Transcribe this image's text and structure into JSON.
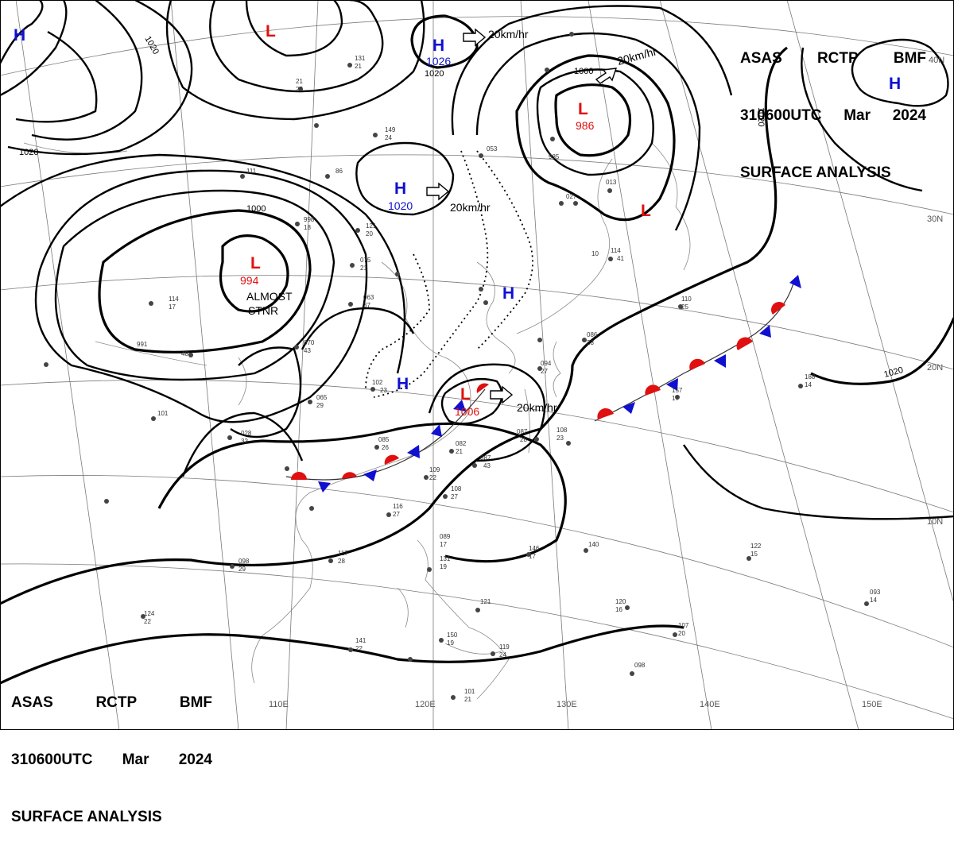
{
  "header_top": {
    "line1": [
      "ASAS",
      "RCTP",
      "BMF"
    ],
    "line2": [
      "310600UTC",
      "Mar",
      "2024"
    ],
    "line3": "SURFACE ANALYSIS"
  },
  "header_bottom": {
    "line1": [
      "ASAS",
      "RCTP",
      "BMF"
    ],
    "line2": [
      "310600UTC",
      "Mar",
      "2024"
    ],
    "line3": "SURFACE ANALYSIS"
  },
  "colors": {
    "high": "#1010d0",
    "low": "#e01010",
    "isobar": "#000000",
    "grid": "#7a7a7a"
  },
  "pressure_systems": [
    {
      "type": "H",
      "value": ""
    },
    {
      "type": "L",
      "value": ""
    },
    {
      "type": "H",
      "value": "1026"
    },
    {
      "type": "L",
      "value": "986"
    },
    {
      "type": "H",
      "value": "1020"
    },
    {
      "type": "L",
      "value": "994"
    },
    {
      "type": "L",
      "value": ""
    },
    {
      "type": "H",
      "value": ""
    },
    {
      "type": "H",
      "value": ""
    },
    {
      "type": "L",
      "value": "1006"
    },
    {
      "type": "H",
      "value": ""
    }
  ],
  "motion_labels": [
    "20km/hr",
    "20km/hr",
    "20km/hr",
    "20km/hr"
  ],
  "annotations": [
    "ALMOST",
    "STNR"
  ],
  "isobar_labels": [
    "1020",
    "1020",
    "1000",
    "1000",
    "1020",
    "1020",
    "1020",
    "1026"
  ],
  "longitude_labels": [
    "110E",
    "120E",
    "130E",
    "140E",
    "150E"
  ],
  "latitude_labels": [
    "40N",
    "30N",
    "20N",
    "10N"
  ],
  "station_values": [
    "131",
    "21",
    "25",
    "149",
    "24",
    "86",
    "111",
    "998",
    "18",
    "121",
    "20",
    "075",
    "21",
    "063",
    "37",
    "114",
    "17",
    "991",
    "48",
    "070",
    "43",
    "065",
    "29",
    "028",
    "32",
    "101",
    "102",
    "23",
    "085",
    "26",
    "082",
    "21",
    "087",
    "43",
    "109",
    "22",
    "108",
    "27",
    "116",
    "27",
    "117",
    "28",
    "098",
    "29",
    "124",
    "22",
    "141",
    "22",
    "150",
    "19",
    "101",
    "21",
    "110",
    "25",
    "188",
    "14",
    "157",
    "17",
    "146",
    "17",
    "140",
    "122",
    "15",
    "120",
    "16",
    "107",
    "20",
    "098",
    "093",
    "14",
    "053",
    "985",
    "027",
    "013",
    "114",
    "41",
    "10",
    "094",
    "27",
    "108",
    "23",
    "087",
    "28",
    "086",
    "28",
    "119",
    "24",
    "089",
    "17",
    "131",
    "19",
    "121"
  ]
}
